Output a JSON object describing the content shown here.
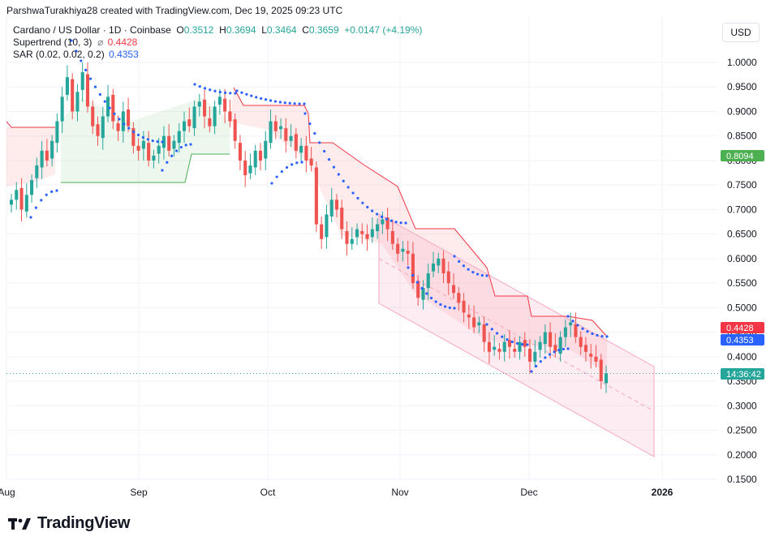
{
  "header": {
    "text": "ParshwaTurakhiya28 created with TradingView.com, Dec 19, 2025 09:23 UTC"
  },
  "legend": {
    "symbol": "Cardano / US Dollar · 1D · Coinbase",
    "o_label": "O",
    "o": "0.3512",
    "h_label": "H",
    "h": "0.3694",
    "l_label": "L",
    "l": "0.3464",
    "c_label": "C",
    "c": "0.3659",
    "change": "+0.0147 (+4.19%)",
    "supertrend_label": "Supertrend (10, 3)",
    "supertrend_icon": "⌀",
    "supertrend_value": "0.4428",
    "sar_label": "SAR (0.02, 0.02, 0.2)",
    "sar_value": "0.4353"
  },
  "currency_button": "USD",
  "logo": {
    "text": "TradingView"
  },
  "colors": {
    "up": "#26a69a",
    "down": "#ef5350",
    "sar": "#2962ff",
    "supertrend_up": "#4caf50",
    "supertrend_down": "#f23645",
    "channel": "#f7a7c0"
  },
  "badges": {
    "supertrend_up_last": "0.8094",
    "supertrend": "0.4428",
    "sar": "0.4353",
    "countdown": "14:36:42"
  },
  "chart_data": {
    "type": "candlestick",
    "title": "Cardano / US Dollar · 1D · Coinbase",
    "y_ticks": [
      "1.0000",
      "0.9500",
      "0.9000",
      "0.8500",
      "0.8000",
      "0.7500",
      "0.7000",
      "0.6500",
      "0.6000",
      "0.5500",
      "0.5000",
      "0.4500",
      "0.4000",
      "0.3500",
      "0.3000",
      "0.2500",
      "0.2000",
      "0.1500"
    ],
    "x_ticks": [
      "Aug",
      "Sep",
      "Oct",
      "Nov",
      "Dec",
      "2026"
    ],
    "ylim": [
      0.15,
      1.0
    ],
    "grid": true,
    "last_close": 0.3659,
    "price_series": [
      0.72,
      0.74,
      0.7,
      0.73,
      0.76,
      0.79,
      0.82,
      0.8,
      0.84,
      0.88,
      0.93,
      0.97,
      0.9,
      0.94,
      0.98,
      0.91,
      0.87,
      0.85,
      0.89,
      0.93,
      0.88,
      0.86,
      0.9,
      0.87,
      0.83,
      0.82,
      0.84,
      0.8,
      0.81,
      0.83,
      0.85,
      0.82,
      0.84,
      0.86,
      0.88,
      0.87,
      0.91,
      0.92,
      0.89,
      0.87,
      0.91,
      0.93,
      0.9,
      0.88,
      0.84,
      0.8,
      0.77,
      0.79,
      0.82,
      0.8,
      0.84,
      0.88,
      0.86,
      0.87,
      0.84,
      0.85,
      0.82,
      0.83,
      0.8,
      0.79,
      0.67,
      0.64,
      0.69,
      0.72,
      0.7,
      0.66,
      0.63,
      0.64,
      0.66,
      0.65,
      0.64,
      0.66,
      0.67,
      0.68,
      0.66,
      0.63,
      0.61,
      0.62,
      0.61,
      0.55,
      0.52,
      0.54,
      0.57,
      0.59,
      0.6,
      0.57,
      0.55,
      0.53,
      0.51,
      0.49,
      0.48,
      0.46,
      0.47,
      0.43,
      0.41,
      0.42,
      0.41,
      0.43,
      0.42,
      0.41,
      0.43,
      0.42,
      0.39,
      0.41,
      0.43,
      0.45,
      0.42,
      0.41,
      0.44,
      0.46,
      0.47,
      0.44,
      0.42,
      0.41,
      0.4,
      0.39,
      0.35,
      0.3659
    ]
  }
}
